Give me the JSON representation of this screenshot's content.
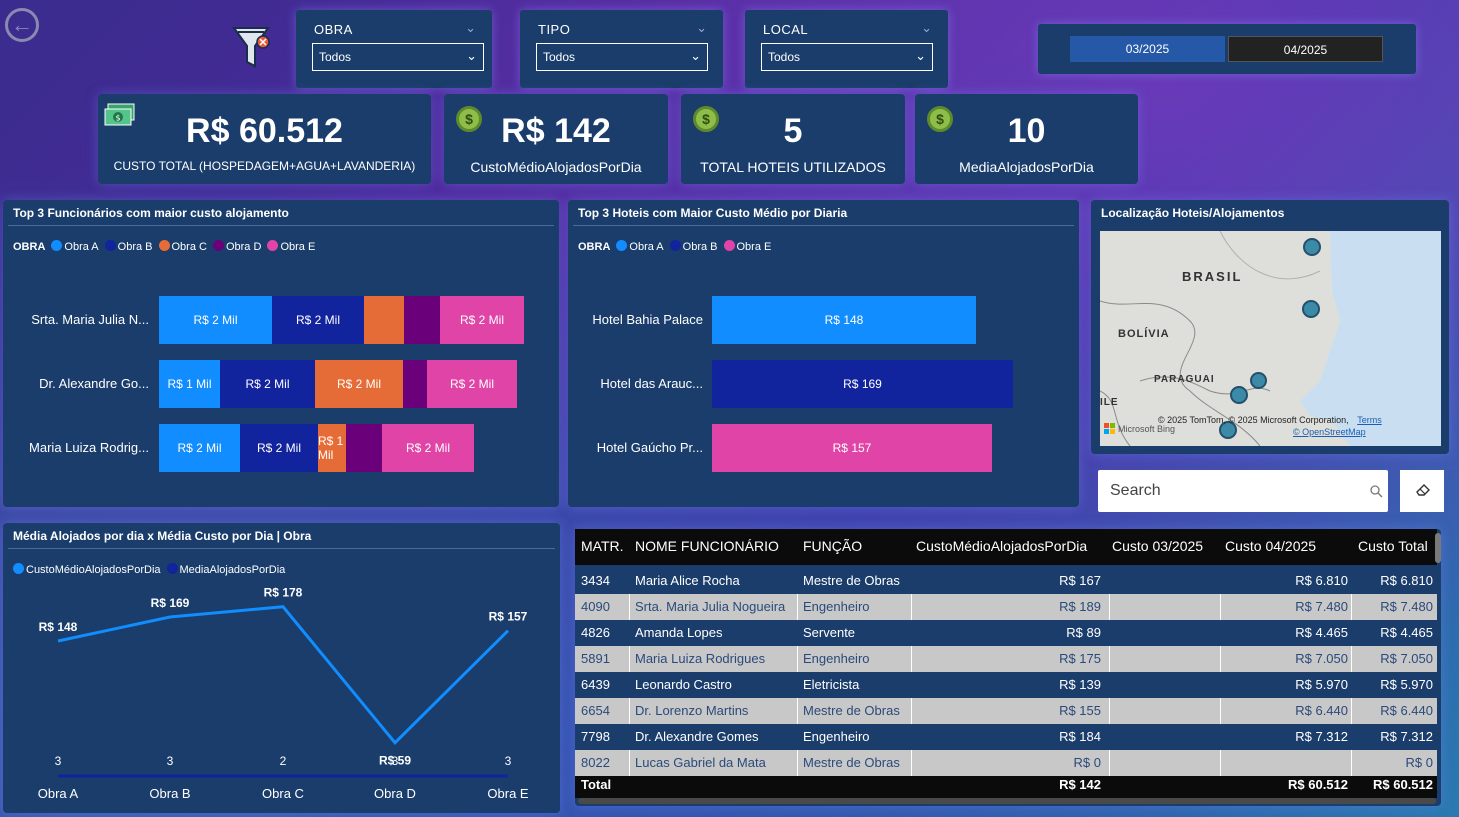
{
  "filters": {
    "obra": {
      "label": "OBRA",
      "value": "Todos"
    },
    "tipo": {
      "label": "TIPO",
      "value": "Todos"
    },
    "local": {
      "label": "LOCAL",
      "value": "Todos"
    },
    "dates": {
      "start": "03/2025",
      "end": "04/2025"
    }
  },
  "kpis": [
    {
      "value": "R$ 60.512",
      "label": "CUSTO TOTAL (HOSPEDAGEM+AGUA+LAVANDERIA)"
    },
    {
      "value": "R$ 142",
      "label": "CustoMédioAlojadosPorDia"
    },
    {
      "value": "5",
      "label": "TOTAL HOTEIS UTILIZADOS"
    },
    {
      "value": "10",
      "label": "MediaAlojadosPorDia"
    }
  ],
  "colors": {
    "obra_a": "#118dff",
    "obra_b": "#12239e",
    "obra_c": "#e66c37",
    "obra_d": "#6b007b",
    "obra_e": "#e044a7"
  },
  "top_func": {
    "title": "Top 3 Funcionários com maior custo alojamento",
    "legend_title": "OBRA",
    "legend": [
      "Obra A",
      "Obra B",
      "Obra C",
      "Obra D",
      "Obra E"
    ],
    "rows": [
      {
        "name": "Srta. Maria Julia N...",
        "segs": [
          {
            "label": "R$ 2 Mil",
            "w": 113,
            "c": "#118dff"
          },
          {
            "label": "R$ 2 Mil",
            "w": 92,
            "c": "#12239e"
          },
          {
            "label": "",
            "w": 40,
            "c": "#e66c37"
          },
          {
            "label": "",
            "w": 36,
            "c": "#6b007b"
          },
          {
            "label": "R$ 2 Mil",
            "w": 84,
            "c": "#e044a7"
          }
        ]
      },
      {
        "name": "Dr. Alexandre Go...",
        "segs": [
          {
            "label": "R$ 1 Mil",
            "w": 61,
            "c": "#118dff"
          },
          {
            "label": "R$ 2 Mil",
            "w": 95,
            "c": "#12239e"
          },
          {
            "label": "R$ 2 Mil",
            "w": 88,
            "c": "#e66c37"
          },
          {
            "label": "",
            "w": 24,
            "c": "#6b007b"
          },
          {
            "label": "R$ 2 Mil",
            "w": 90,
            "c": "#e044a7"
          }
        ]
      },
      {
        "name": "Maria Luiza Rodrig...",
        "segs": [
          {
            "label": "R$ 2 Mil",
            "w": 81,
            "c": "#118dff"
          },
          {
            "label": "R$ 2 Mil",
            "w": 78,
            "c": "#12239e"
          },
          {
            "label": "R$ 1 Mil",
            "w": 28,
            "c": "#e66c37"
          },
          {
            "label": "",
            "w": 36,
            "c": "#6b007b"
          },
          {
            "label": "R$ 2 Mil",
            "w": 92,
            "c": "#e044a7"
          }
        ]
      }
    ]
  },
  "top_hotels": {
    "title": "Top 3 Hoteis com Maior Custo Médio por Diaria",
    "legend_title": "OBRA",
    "legend": [
      "Obra A",
      "Obra B",
      "Obra E"
    ],
    "rows": [
      {
        "name": "Hotel Bahia Palace",
        "label": "R$ 148",
        "value": 148,
        "c": "#118dff"
      },
      {
        "name": "Hotel das Arauc...",
        "label": "R$ 169",
        "value": 169,
        "c": "#12239e"
      },
      {
        "name": "Hotel Gaúcho Pr...",
        "label": "R$ 157",
        "value": 157,
        "c": "#e044a7"
      }
    ]
  },
  "map": {
    "title": "Localização Hoteis/Alojamentos",
    "labels": {
      "brasil": "BRASIL",
      "bolivia": "BOLÍVIA",
      "paraguai": "PARAGUAI",
      "chile": "ILE"
    },
    "attrib": "© 2025 TomTom, © 2025 Microsoft Corporation,",
    "terms": "Terms",
    "osm": "© OpenStreetMap",
    "bing": "Microsoft Bing"
  },
  "search": {
    "placeholder": "Search"
  },
  "line_chart": {
    "title": "Média Alojados por dia x Média Custo por Dia | Obra",
    "legend": [
      "CustoMédioAlojadosPorDia",
      "MediaAlojadosPorDia"
    ]
  },
  "chart_data": {
    "type": "line",
    "categories": [
      "Obra A",
      "Obra B",
      "Obra C",
      "Obra D",
      "Obra E"
    ],
    "series": [
      {
        "name": "CustoMédioAlojadosPorDia",
        "values": [
          148,
          169,
          178,
          59,
          157
        ],
        "labels": [
          "R$ 148",
          "R$ 169",
          "R$ 178",
          "R$ 59",
          "R$ 157"
        ],
        "color": "#118dff"
      },
      {
        "name": "MediaAlojadosPorDia",
        "values": [
          3,
          3,
          2,
          3,
          3
        ],
        "color": "#12239e"
      }
    ]
  },
  "table": {
    "headers": [
      "MATR.",
      "NOME FUNCIONÁRIO",
      "FUNÇÃO",
      "CustoMédioAlojadosPorDia",
      "Custo 03/2025",
      "Custo 04/2025",
      "Custo Total"
    ],
    "rows": [
      [
        "3434",
        "Maria Alice Rocha",
        "Mestre de Obras",
        "R$ 167",
        "",
        "R$ 6.810",
        "R$ 6.810"
      ],
      [
        "4090",
        "Srta. Maria Julia Nogueira",
        "Engenheiro",
        "R$ 189",
        "",
        "R$ 7.480",
        "R$ 7.480"
      ],
      [
        "4826",
        "Amanda Lopes",
        "Servente",
        "R$ 89",
        "",
        "R$ 4.465",
        "R$ 4.465"
      ],
      [
        "5891",
        "Maria Luiza Rodrigues",
        "Engenheiro",
        "R$ 175",
        "",
        "R$ 7.050",
        "R$ 7.050"
      ],
      [
        "6439",
        "Leonardo Castro",
        "Eletricista",
        "R$ 139",
        "",
        "R$ 5.970",
        "R$ 5.970"
      ],
      [
        "6654",
        "Dr. Lorenzo Martins",
        "Mestre de Obras",
        "R$ 155",
        "",
        "R$ 6.440",
        "R$ 6.440"
      ],
      [
        "7798",
        "Dr. Alexandre Gomes",
        "Engenheiro",
        "R$ 184",
        "",
        "R$ 7.312",
        "R$ 7.312"
      ],
      [
        "8022",
        "Lucas Gabriel da Mata",
        "Mestre de Obras",
        "R$ 0",
        "",
        "",
        "R$ 0"
      ]
    ],
    "total": [
      "Total",
      "R$ 142",
      "R$ 60.512",
      "R$ 60.512"
    ]
  }
}
